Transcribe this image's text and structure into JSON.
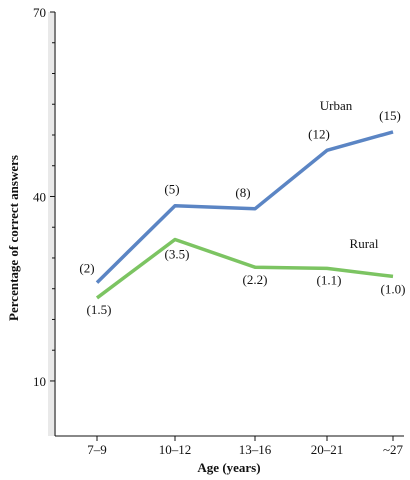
{
  "chart_data": {
    "type": "line",
    "categories": [
      "7–9",
      "10–12",
      "13–16",
      "20–21",
      "~27"
    ],
    "ylabel": "Percentage of correct answers",
    "xlabel": "Age (years)",
    "ylim": [
      0,
      70
    ],
    "yticks": [
      10,
      40,
      70
    ],
    "grid": false,
    "series": [
      {
        "name": "Urban",
        "color": "#5b85c4",
        "values": [
          26,
          38.5,
          38,
          47.5,
          50.5
        ],
        "point_labels": [
          "(2)",
          "(5)",
          "(8)",
          "(12)",
          "(15)"
        ]
      },
      {
        "name": "Rural",
        "color": "#7cc462",
        "values": [
          23.5,
          33,
          28.5,
          28.3,
          27
        ],
        "point_labels": [
          "(1.5)",
          "(3.5)",
          "(2.2)",
          "(1.1)",
          "(1.0)"
        ]
      }
    ]
  }
}
